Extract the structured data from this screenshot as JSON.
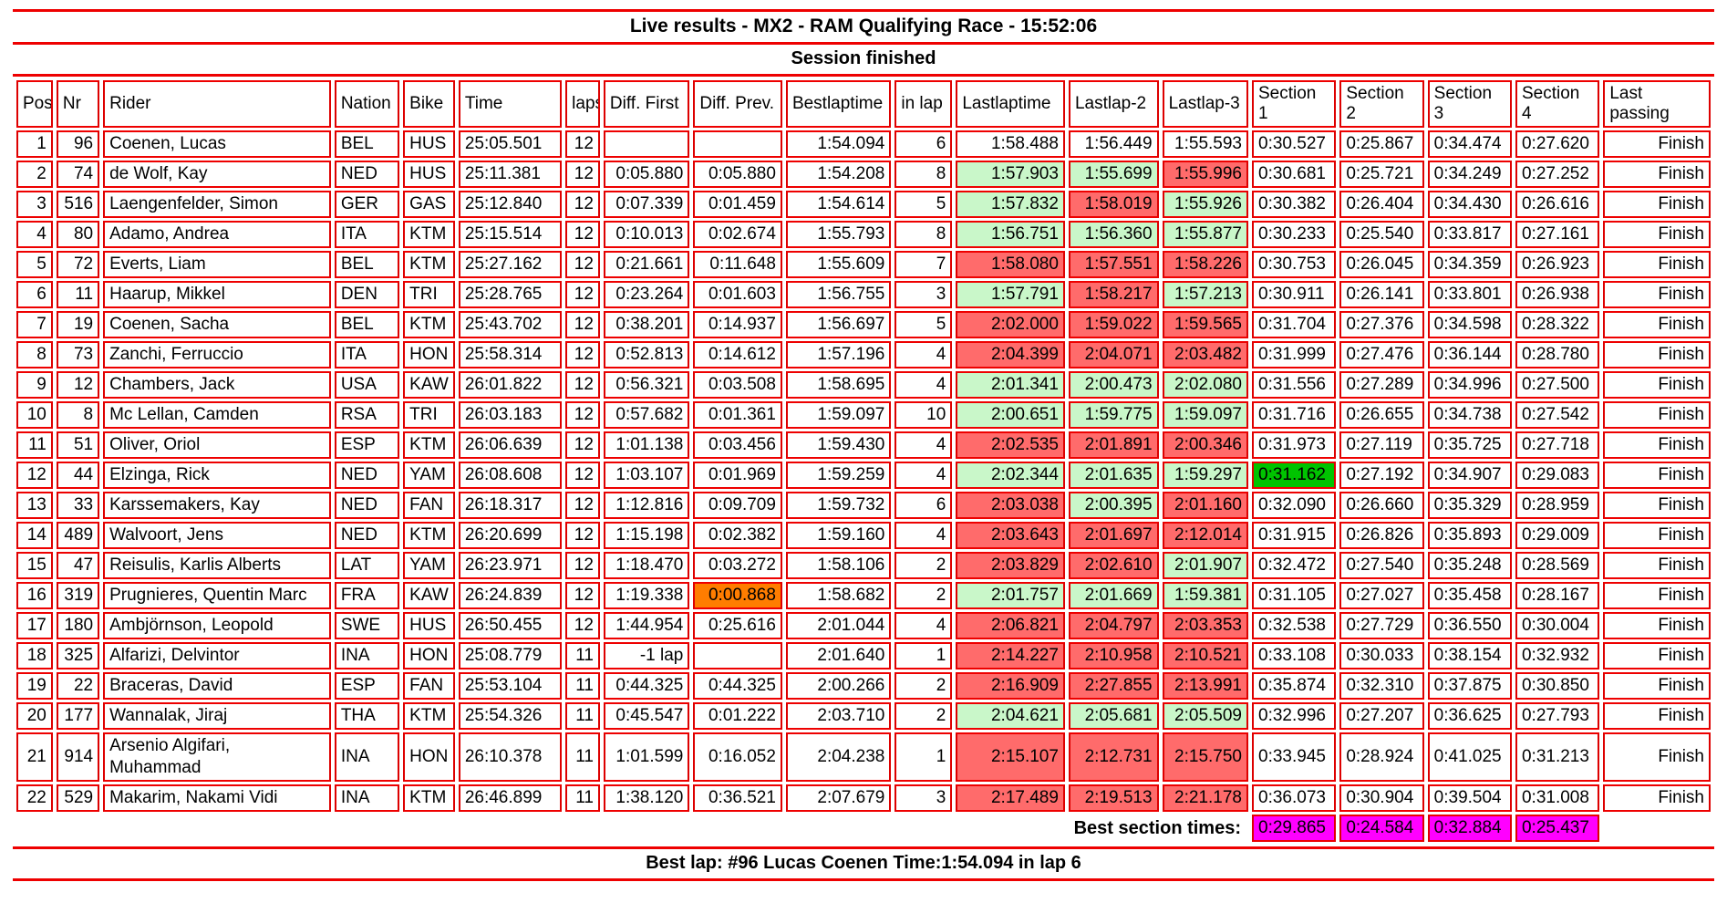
{
  "header": {
    "title": "Live results - MX2 - RAM Qualifying Race - 15:52:06",
    "session_status": "Session finished"
  },
  "colors": {
    "border_red": "#dd0000",
    "faster_green": "#c9f7c9",
    "slower_red": "#ff6b6b",
    "gap_orange": "#ff7d00",
    "best_section_green": "#00c400",
    "best_section_magenta": "#ff00ff"
  },
  "table": {
    "columns": [
      {
        "key": "pos",
        "label": "Pos"
      },
      {
        "key": "nr",
        "label": "Nr"
      },
      {
        "key": "rider",
        "label": "Rider"
      },
      {
        "key": "nation",
        "label": "Nation"
      },
      {
        "key": "bike",
        "label": "Bike"
      },
      {
        "key": "time",
        "label": "Time"
      },
      {
        "key": "laps",
        "label": "laps"
      },
      {
        "key": "diff_first",
        "label": "Diff. First"
      },
      {
        "key": "diff_prev",
        "label": "Diff. Prev."
      },
      {
        "key": "best",
        "label": "Bestlaptime"
      },
      {
        "key": "in_lap",
        "label": "in lap"
      },
      {
        "key": "last1",
        "label": "Lastlaptime"
      },
      {
        "key": "last2",
        "label": "Lastlap-2"
      },
      {
        "key": "last3",
        "label": "Lastlap-3"
      },
      {
        "key": "s1",
        "label": "Section 1"
      },
      {
        "key": "s2",
        "label": "Section 2"
      },
      {
        "key": "s3",
        "label": "Section 3"
      },
      {
        "key": "s4",
        "label": "Section 4"
      },
      {
        "key": "last_passing",
        "label": "Last passing"
      }
    ],
    "rows": [
      {
        "pos": "1",
        "nr": "96",
        "rider": "Coenen, Lucas",
        "nation": "BEL",
        "bike": "HUS",
        "time": "25:05.501",
        "laps": "12",
        "diff_first": "",
        "diff_prev": "",
        "best": "1:54.094",
        "in_lap": "6",
        "last1": "1:58.488",
        "last2": "1:56.449",
        "last3": "1:55.593",
        "s1": "0:30.527",
        "s2": "0:25.867",
        "s3": "0:34.474",
        "s4": "0:27.620",
        "last_passing": "Finish"
      },
      {
        "pos": "2",
        "nr": "74",
        "rider": "de Wolf, Kay",
        "nation": "NED",
        "bike": "HUS",
        "time": "25:11.381",
        "laps": "12",
        "diff_first": "0:05.880",
        "diff_prev": "0:05.880",
        "best": "1:54.208",
        "in_lap": "8",
        "last1": "1:57.903",
        "last1_hl": "g",
        "last2": "1:55.699",
        "last2_hl": "g",
        "last3": "1:55.996",
        "last3_hl": "r",
        "s1": "0:30.681",
        "s2": "0:25.721",
        "s3": "0:34.249",
        "s4": "0:27.252",
        "last_passing": "Finish"
      },
      {
        "pos": "3",
        "nr": "516",
        "rider": "Laengenfelder, Simon",
        "nation": "GER",
        "bike": "GAS",
        "time": "25:12.840",
        "laps": "12",
        "diff_first": "0:07.339",
        "diff_prev": "0:01.459",
        "best": "1:54.614",
        "in_lap": "5",
        "last1": "1:57.832",
        "last1_hl": "g",
        "last2": "1:58.019",
        "last2_hl": "r",
        "last3": "1:55.926",
        "last3_hl": "g",
        "s1": "0:30.382",
        "s2": "0:26.404",
        "s3": "0:34.430",
        "s4": "0:26.616",
        "last_passing": "Finish"
      },
      {
        "pos": "4",
        "nr": "80",
        "rider": "Adamo, Andrea",
        "nation": "ITA",
        "bike": "KTM",
        "time": "25:15.514",
        "laps": "12",
        "diff_first": "0:10.013",
        "diff_prev": "0:02.674",
        "best": "1:55.793",
        "in_lap": "8",
        "last1": "1:56.751",
        "last1_hl": "g",
        "last2": "1:56.360",
        "last2_hl": "g",
        "last3": "1:55.877",
        "last3_hl": "g",
        "s1": "0:30.233",
        "s2": "0:25.540",
        "s3": "0:33.817",
        "s4": "0:27.161",
        "last_passing": "Finish"
      },
      {
        "pos": "5",
        "nr": "72",
        "rider": "Everts, Liam",
        "nation": "BEL",
        "bike": "KTM",
        "time": "25:27.162",
        "laps": "12",
        "diff_first": "0:21.661",
        "diff_prev": "0:11.648",
        "best": "1:55.609",
        "in_lap": "7",
        "last1": "1:58.080",
        "last1_hl": "r",
        "last2": "1:57.551",
        "last2_hl": "r",
        "last3": "1:58.226",
        "last3_hl": "r",
        "s1": "0:30.753",
        "s2": "0:26.045",
        "s3": "0:34.359",
        "s4": "0:26.923",
        "last_passing": "Finish"
      },
      {
        "pos": "6",
        "nr": "11",
        "rider": "Haarup, Mikkel",
        "nation": "DEN",
        "bike": "TRI",
        "time": "25:28.765",
        "laps": "12",
        "diff_first": "0:23.264",
        "diff_prev": "0:01.603",
        "best": "1:56.755",
        "in_lap": "3",
        "last1": "1:57.791",
        "last1_hl": "g",
        "last2": "1:58.217",
        "last2_hl": "r",
        "last3": "1:57.213",
        "last3_hl": "g",
        "s1": "0:30.911",
        "s2": "0:26.141",
        "s3": "0:33.801",
        "s4": "0:26.938",
        "last_passing": "Finish"
      },
      {
        "pos": "7",
        "nr": "19",
        "rider": "Coenen, Sacha",
        "nation": "BEL",
        "bike": "KTM",
        "time": "25:43.702",
        "laps": "12",
        "diff_first": "0:38.201",
        "diff_prev": "0:14.937",
        "best": "1:56.697",
        "in_lap": "5",
        "last1": "2:02.000",
        "last1_hl": "r",
        "last2": "1:59.022",
        "last2_hl": "r",
        "last3": "1:59.565",
        "last3_hl": "r",
        "s1": "0:31.704",
        "s2": "0:27.376",
        "s3": "0:34.598",
        "s4": "0:28.322",
        "last_passing": "Finish"
      },
      {
        "pos": "8",
        "nr": "73",
        "rider": "Zanchi, Ferruccio",
        "nation": "ITA",
        "bike": "HON",
        "time": "25:58.314",
        "laps": "12",
        "diff_first": "0:52.813",
        "diff_prev": "0:14.612",
        "best": "1:57.196",
        "in_lap": "4",
        "last1": "2:04.399",
        "last1_hl": "r",
        "last2": "2:04.071",
        "last2_hl": "r",
        "last3": "2:03.482",
        "last3_hl": "r",
        "s1": "0:31.999",
        "s2": "0:27.476",
        "s3": "0:36.144",
        "s4": "0:28.780",
        "last_passing": "Finish"
      },
      {
        "pos": "9",
        "nr": "12",
        "rider": "Chambers, Jack",
        "nation": "USA",
        "bike": "KAW",
        "time": "26:01.822",
        "laps": "12",
        "diff_first": "0:56.321",
        "diff_prev": "0:03.508",
        "best": "1:58.695",
        "in_lap": "4",
        "last1": "2:01.341",
        "last1_hl": "g",
        "last2": "2:00.473",
        "last2_hl": "g",
        "last3": "2:02.080",
        "last3_hl": "g",
        "s1": "0:31.556",
        "s2": "0:27.289",
        "s3": "0:34.996",
        "s4": "0:27.500",
        "last_passing": "Finish"
      },
      {
        "pos": "10",
        "nr": "8",
        "rider": "Mc Lellan, Camden",
        "nation": "RSA",
        "bike": "TRI",
        "time": "26:03.183",
        "laps": "12",
        "diff_first": "0:57.682",
        "diff_prev": "0:01.361",
        "best": "1:59.097",
        "in_lap": "10",
        "last1": "2:00.651",
        "last1_hl": "g",
        "last2": "1:59.775",
        "last2_hl": "g",
        "last3": "1:59.097",
        "last3_hl": "g",
        "s1": "0:31.716",
        "s2": "0:26.655",
        "s3": "0:34.738",
        "s4": "0:27.542",
        "last_passing": "Finish"
      },
      {
        "pos": "11",
        "nr": "51",
        "rider": "Oliver, Oriol",
        "nation": "ESP",
        "bike": "KTM",
        "time": "26:06.639",
        "laps": "12",
        "diff_first": "1:01.138",
        "diff_prev": "0:03.456",
        "best": "1:59.430",
        "in_lap": "4",
        "last1": "2:02.535",
        "last1_hl": "r",
        "last2": "2:01.891",
        "last2_hl": "r",
        "last3": "2:00.346",
        "last3_hl": "r",
        "s1": "0:31.973",
        "s2": "0:27.119",
        "s3": "0:35.725",
        "s4": "0:27.718",
        "last_passing": "Finish"
      },
      {
        "pos": "12",
        "nr": "44",
        "rider": "Elzinga, Rick",
        "nation": "NED",
        "bike": "YAM",
        "time": "26:08.608",
        "laps": "12",
        "diff_first": "1:03.107",
        "diff_prev": "0:01.969",
        "best": "1:59.259",
        "in_lap": "4",
        "last1": "2:02.344",
        "last1_hl": "g",
        "last2": "2:01.635",
        "last2_hl": "g",
        "last3": "1:59.297",
        "last3_hl": "g",
        "s1": "0:31.162",
        "s1_hl": "b",
        "s2": "0:27.192",
        "s3": "0:34.907",
        "s4": "0:29.083",
        "last_passing": "Finish"
      },
      {
        "pos": "13",
        "nr": "33",
        "rider": "Karssemakers, Kay",
        "nation": "NED",
        "bike": "FAN",
        "time": "26:18.317",
        "laps": "12",
        "diff_first": "1:12.816",
        "diff_prev": "0:09.709",
        "best": "1:59.732",
        "in_lap": "6",
        "last1": "2:03.038",
        "last1_hl": "r",
        "last2": "2:00.395",
        "last2_hl": "g",
        "last3": "2:01.160",
        "last3_hl": "r",
        "s1": "0:32.090",
        "s2": "0:26.660",
        "s3": "0:35.329",
        "s4": "0:28.959",
        "last_passing": "Finish"
      },
      {
        "pos": "14",
        "nr": "489",
        "rider": "Walvoort, Jens",
        "nation": "NED",
        "bike": "KTM",
        "time": "26:20.699",
        "laps": "12",
        "diff_first": "1:15.198",
        "diff_prev": "0:02.382",
        "best": "1:59.160",
        "in_lap": "4",
        "last1": "2:03.643",
        "last1_hl": "r",
        "last2": "2:01.697",
        "last2_hl": "r",
        "last3": "2:12.014",
        "last3_hl": "r",
        "s1": "0:31.915",
        "s2": "0:26.826",
        "s3": "0:35.893",
        "s4": "0:29.009",
        "last_passing": "Finish"
      },
      {
        "pos": "15",
        "nr": "47",
        "rider": "Reisulis, Karlis Alberts",
        "nation": "LAT",
        "bike": "YAM",
        "time": "26:23.971",
        "laps": "12",
        "diff_first": "1:18.470",
        "diff_prev": "0:03.272",
        "best": "1:58.106",
        "in_lap": "2",
        "last1": "2:03.829",
        "last1_hl": "r",
        "last2": "2:02.610",
        "last2_hl": "r",
        "last3": "2:01.907",
        "last3_hl": "g",
        "s1": "0:32.472",
        "s2": "0:27.540",
        "s3": "0:35.248",
        "s4": "0:28.569",
        "last_passing": "Finish"
      },
      {
        "pos": "16",
        "nr": "319",
        "rider": "Prugnieres, Quentin Marc",
        "nation": "FRA",
        "bike": "KAW",
        "time": "26:24.839",
        "laps": "12",
        "diff_first": "1:19.338",
        "diff_prev": "0:00.868",
        "diff_prev_hl": "o",
        "best": "1:58.682",
        "in_lap": "2",
        "last1": "2:01.757",
        "last1_hl": "g",
        "last2": "2:01.669",
        "last2_hl": "g",
        "last3": "1:59.381",
        "last3_hl": "g",
        "s1": "0:31.105",
        "s2": "0:27.027",
        "s3": "0:35.458",
        "s4": "0:28.167",
        "last_passing": "Finish"
      },
      {
        "pos": "17",
        "nr": "180",
        "rider": "Ambjörnson, Leopold",
        "nation": "SWE",
        "bike": "HUS",
        "time": "26:50.455",
        "laps": "12",
        "diff_first": "1:44.954",
        "diff_prev": "0:25.616",
        "best": "2:01.044",
        "in_lap": "4",
        "last1": "2:06.821",
        "last1_hl": "r",
        "last2": "2:04.797",
        "last2_hl": "r",
        "last3": "2:03.353",
        "last3_hl": "r",
        "s1": "0:32.538",
        "s2": "0:27.729",
        "s3": "0:36.550",
        "s4": "0:30.004",
        "last_passing": "Finish"
      },
      {
        "pos": "18",
        "nr": "325",
        "rider": "Alfarizi, Delvintor",
        "nation": "INA",
        "bike": "HON",
        "time": "25:08.779",
        "laps": "11",
        "diff_first": "-1 lap",
        "diff_prev": "",
        "best": "2:01.640",
        "in_lap": "1",
        "last1": "2:14.227",
        "last1_hl": "r",
        "last2": "2:10.958",
        "last2_hl": "r",
        "last3": "2:10.521",
        "last3_hl": "r",
        "s1": "0:33.108",
        "s2": "0:30.033",
        "s3": "0:38.154",
        "s4": "0:32.932",
        "last_passing": "Finish"
      },
      {
        "pos": "19",
        "nr": "22",
        "rider": "Braceras, David",
        "nation": "ESP",
        "bike": "FAN",
        "time": "25:53.104",
        "laps": "11",
        "diff_first": "0:44.325",
        "diff_prev": "0:44.325",
        "best": "2:00.266",
        "in_lap": "2",
        "last1": "2:16.909",
        "last1_hl": "r",
        "last2": "2:27.855",
        "last2_hl": "r",
        "last3": "2:13.991",
        "last3_hl": "r",
        "s1": "0:35.874",
        "s2": "0:32.310",
        "s3": "0:37.875",
        "s4": "0:30.850",
        "last_passing": "Finish"
      },
      {
        "pos": "20",
        "nr": "177",
        "rider": "Wannalak, Jiraj",
        "nation": "THA",
        "bike": "KTM",
        "time": "25:54.326",
        "laps": "11",
        "diff_first": "0:45.547",
        "diff_prev": "0:01.222",
        "best": "2:03.710",
        "in_lap": "2",
        "last1": "2:04.621",
        "last1_hl": "g",
        "last2": "2:05.681",
        "last2_hl": "g",
        "last3": "2:05.509",
        "last3_hl": "g",
        "s1": "0:32.996",
        "s2": "0:27.207",
        "s3": "0:36.625",
        "s4": "0:27.793",
        "last_passing": "Finish"
      },
      {
        "pos": "21",
        "nr": "914",
        "rider": "Arsenio Algifari, Muhammad",
        "nation": "INA",
        "bike": "HON",
        "time": "26:10.378",
        "laps": "11",
        "diff_first": "1:01.599",
        "diff_prev": "0:16.052",
        "best": "2:04.238",
        "in_lap": "1",
        "last1": "2:15.107",
        "last1_hl": "r",
        "last2": "2:12.731",
        "last2_hl": "r",
        "last3": "2:15.750",
        "last3_hl": "r",
        "s1": "0:33.945",
        "s2": "0:28.924",
        "s3": "0:41.025",
        "s4": "0:31.213",
        "last_passing": "Finish"
      },
      {
        "pos": "22",
        "nr": "529",
        "rider": "Makarim, Nakami Vidi",
        "nation": "INA",
        "bike": "KTM",
        "time": "26:46.899",
        "laps": "11",
        "diff_first": "1:38.120",
        "diff_prev": "0:36.521",
        "best": "2:07.679",
        "in_lap": "3",
        "last1": "2:17.489",
        "last1_hl": "r",
        "last2": "2:19.513",
        "last2_hl": "r",
        "last3": "2:21.178",
        "last3_hl": "r",
        "s1": "0:36.073",
        "s2": "0:30.904",
        "s3": "0:39.504",
        "s4": "0:31.008",
        "last_passing": "Finish"
      }
    ]
  },
  "best_sections": {
    "label": "Best section times:",
    "values": [
      "0:29.865",
      "0:24.584",
      "0:32.884",
      "0:25.437"
    ]
  },
  "footer": {
    "best_lap": "Best lap: #96 Lucas Coenen Time:1:54.094 in lap 6"
  }
}
